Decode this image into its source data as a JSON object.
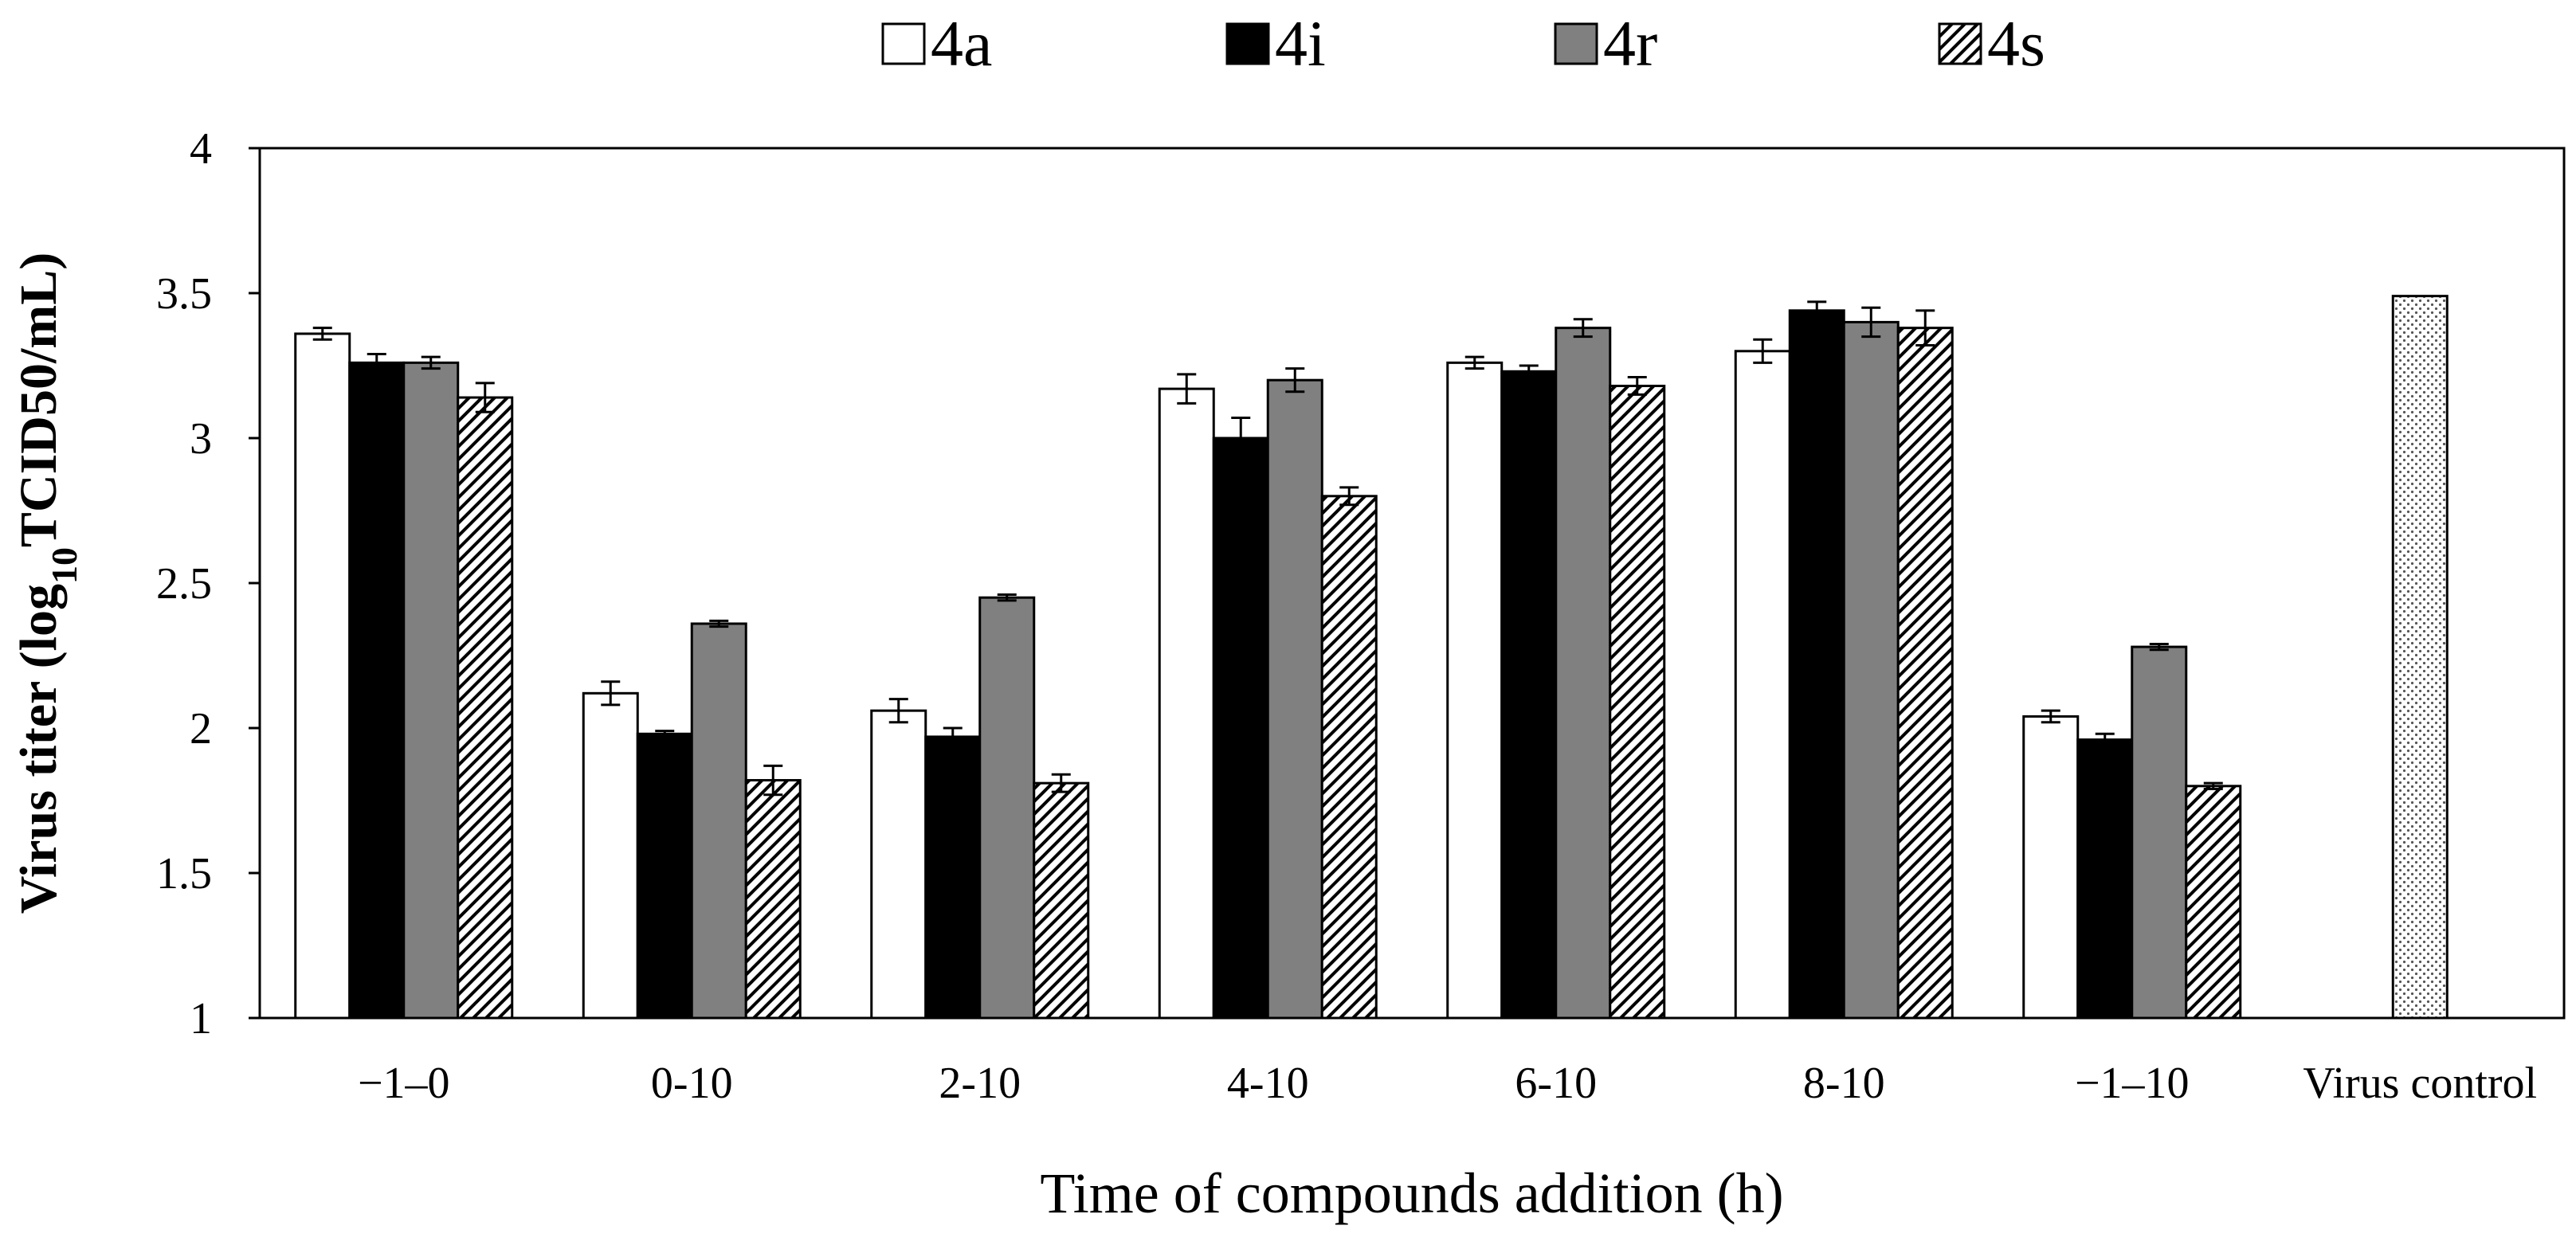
{
  "chart_data": {
    "type": "bar",
    "title": "",
    "xlabel": "Time of compounds addition (h)",
    "ylabel": {
      "prefix": "Virus titer (log",
      "subscript": "10",
      "suffix": "TCID50/mL)"
    },
    "ylim": [
      1,
      4
    ],
    "yticks": [
      "1",
      "1.5",
      "2",
      "2.5",
      "3",
      "3.5",
      "4"
    ],
    "ytick_values": [
      1,
      1.5,
      2,
      2.5,
      3,
      3.5,
      4
    ],
    "grid": false,
    "legend_position": "top",
    "categories": [
      "−1–0",
      "0-10",
      "2-10",
      "4-10",
      "6-10",
      "8-10",
      "−1–10",
      "Virus control"
    ],
    "series": [
      {
        "name": "4a",
        "fill": "white",
        "values": [
          3.36,
          2.12,
          2.06,
          3.17,
          3.26,
          3.3,
          2.04,
          null
        ],
        "errors": [
          0.02,
          0.04,
          0.04,
          0.05,
          0.02,
          0.04,
          0.02,
          null
        ]
      },
      {
        "name": "4i",
        "fill": "black",
        "values": [
          3.26,
          1.98,
          1.97,
          3.0,
          3.23,
          3.44,
          1.96,
          null
        ],
        "errors": [
          0.03,
          0.01,
          0.03,
          0.07,
          0.02,
          0.03,
          0.02,
          null
        ]
      },
      {
        "name": "4r",
        "fill": "gray",
        "values": [
          3.26,
          2.36,
          2.45,
          3.2,
          3.38,
          3.4,
          2.28,
          null
        ],
        "errors": [
          0.02,
          0.01,
          0.01,
          0.04,
          0.03,
          0.05,
          0.01,
          null
        ]
      },
      {
        "name": "4s",
        "fill": "hatched",
        "values": [
          3.14,
          1.82,
          1.81,
          2.8,
          3.18,
          3.38,
          1.8,
          null
        ],
        "errors": [
          0.05,
          0.05,
          0.03,
          0.03,
          0.03,
          0.06,
          0.01,
          null
        ]
      }
    ],
    "virus_control": {
      "label": "Virus control",
      "fill": "dotted",
      "value": 3.49
    },
    "colors": {
      "white": "#ffffff",
      "black": "#000000",
      "gray": "#808080",
      "axis": "#000000"
    }
  }
}
